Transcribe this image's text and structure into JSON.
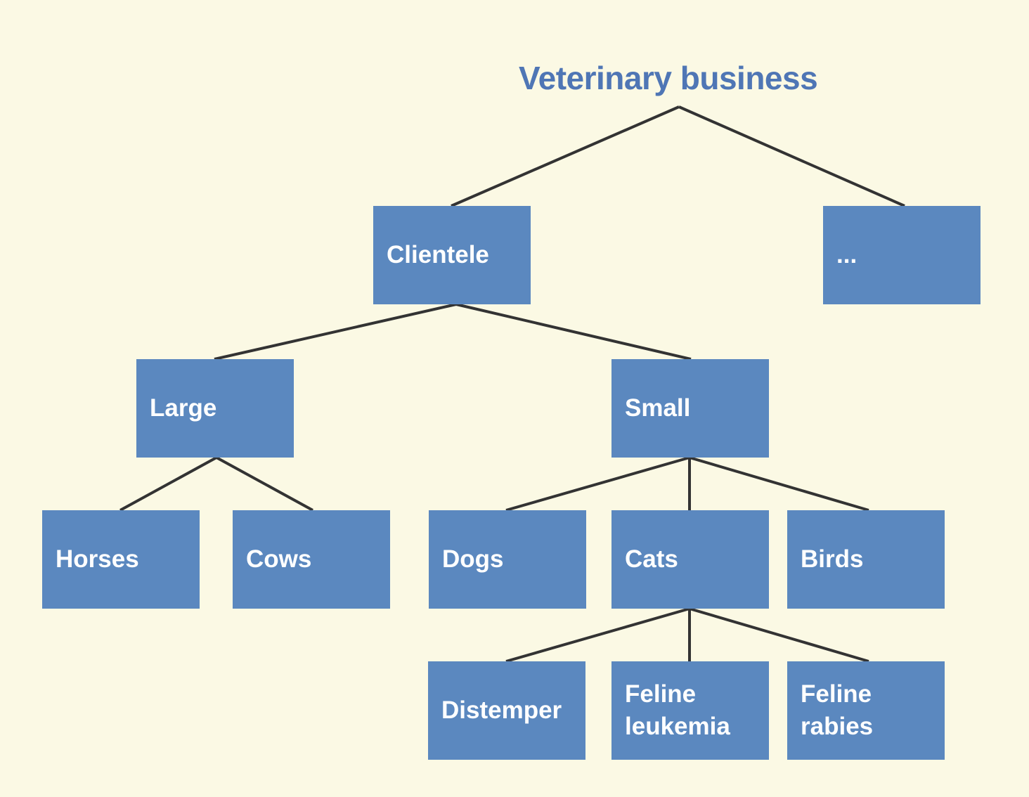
{
  "diagram": {
    "title": "Veterinary business",
    "nodes": {
      "clientele": "Clientele",
      "more": "...",
      "large": "Large",
      "small": "Small",
      "horses": "Horses",
      "cows": "Cows",
      "dogs": "Dogs",
      "cats": "Cats",
      "birds": "Birds",
      "distemper": "Distemper",
      "feline_leukemia": "Feline\nleukemia",
      "feline_rabies": "Feline\nrabies"
    },
    "edges": [
      [
        "root",
        "clientele"
      ],
      [
        "root",
        "more"
      ],
      [
        "clientele",
        "large"
      ],
      [
        "clientele",
        "small"
      ],
      [
        "large",
        "horses"
      ],
      [
        "large",
        "cows"
      ],
      [
        "small",
        "dogs"
      ],
      [
        "small",
        "cats"
      ],
      [
        "small",
        "birds"
      ],
      [
        "cats",
        "distemper"
      ],
      [
        "cats",
        "feline_leukemia"
      ],
      [
        "cats",
        "feline_rabies"
      ]
    ]
  },
  "colors": {
    "background": "#fbf9e4",
    "title": "#4f76b5",
    "node_fill": "#5b88bf",
    "node_text": "#ffffff",
    "edge": "#333333"
  }
}
